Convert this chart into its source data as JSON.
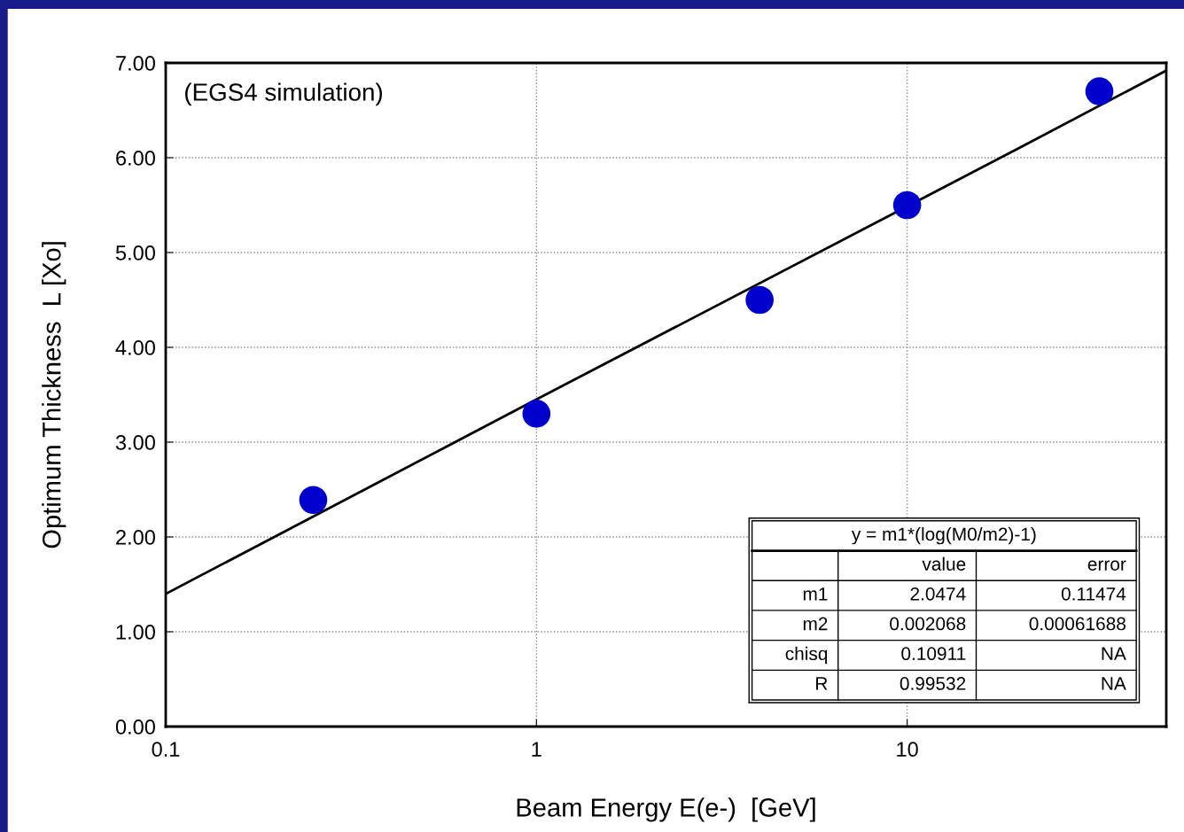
{
  "chart_data": {
    "type": "scatter",
    "xlabel": "Beam Energy E(e-)  [GeV]",
    "ylabel": "Optimum Thickness  L [Xo]",
    "series": [
      {
        "color": "#0000cc",
        "marker": "circle",
        "x": [
          0.25,
          1,
          4,
          10,
          33
        ],
        "values": [
          2.39,
          3.3,
          4.5,
          5.5,
          6.7
        ]
      },
      {
        "type": "line",
        "color": "#000000",
        "marker": "none",
        "line_style": "solid",
        "x": [
          0.1,
          1,
          20,
          50
        ],
        "values": [
          1.4,
          3.45,
          6.1,
          6.92
        ]
      }
    ],
    "log": "x",
    "xlim": [
      0.1,
      50
    ],
    "xticks": [
      0.1,
      1,
      10
    ],
    "ylim": [
      0,
      7
    ],
    "yticks": [
      {
        "value": 0,
        "label": "0.00"
      },
      {
        "value": 1,
        "label": "1.00"
      },
      {
        "value": 2,
        "label": "2.00"
      },
      {
        "value": 3,
        "label": "3.00"
      },
      {
        "value": 4,
        "label": "4.00"
      },
      {
        "value": 5,
        "label": "5.00"
      },
      {
        "value": 6,
        "label": "6.00"
      },
      {
        "value": 7,
        "label": "7.00"
      }
    ],
    "grid": true,
    "annotations": [
      "(EGS4 simulation)",
      "y = m1*(log(M0/m2)-1)",
      "value",
      "error",
      "m1",
      "2.0474",
      "0.11474",
      "m2",
      "0.002068",
      "0.00061688",
      "chisq",
      "0.10911",
      "NA",
      "R",
      "0.99532",
      "NA"
    ]
  }
}
